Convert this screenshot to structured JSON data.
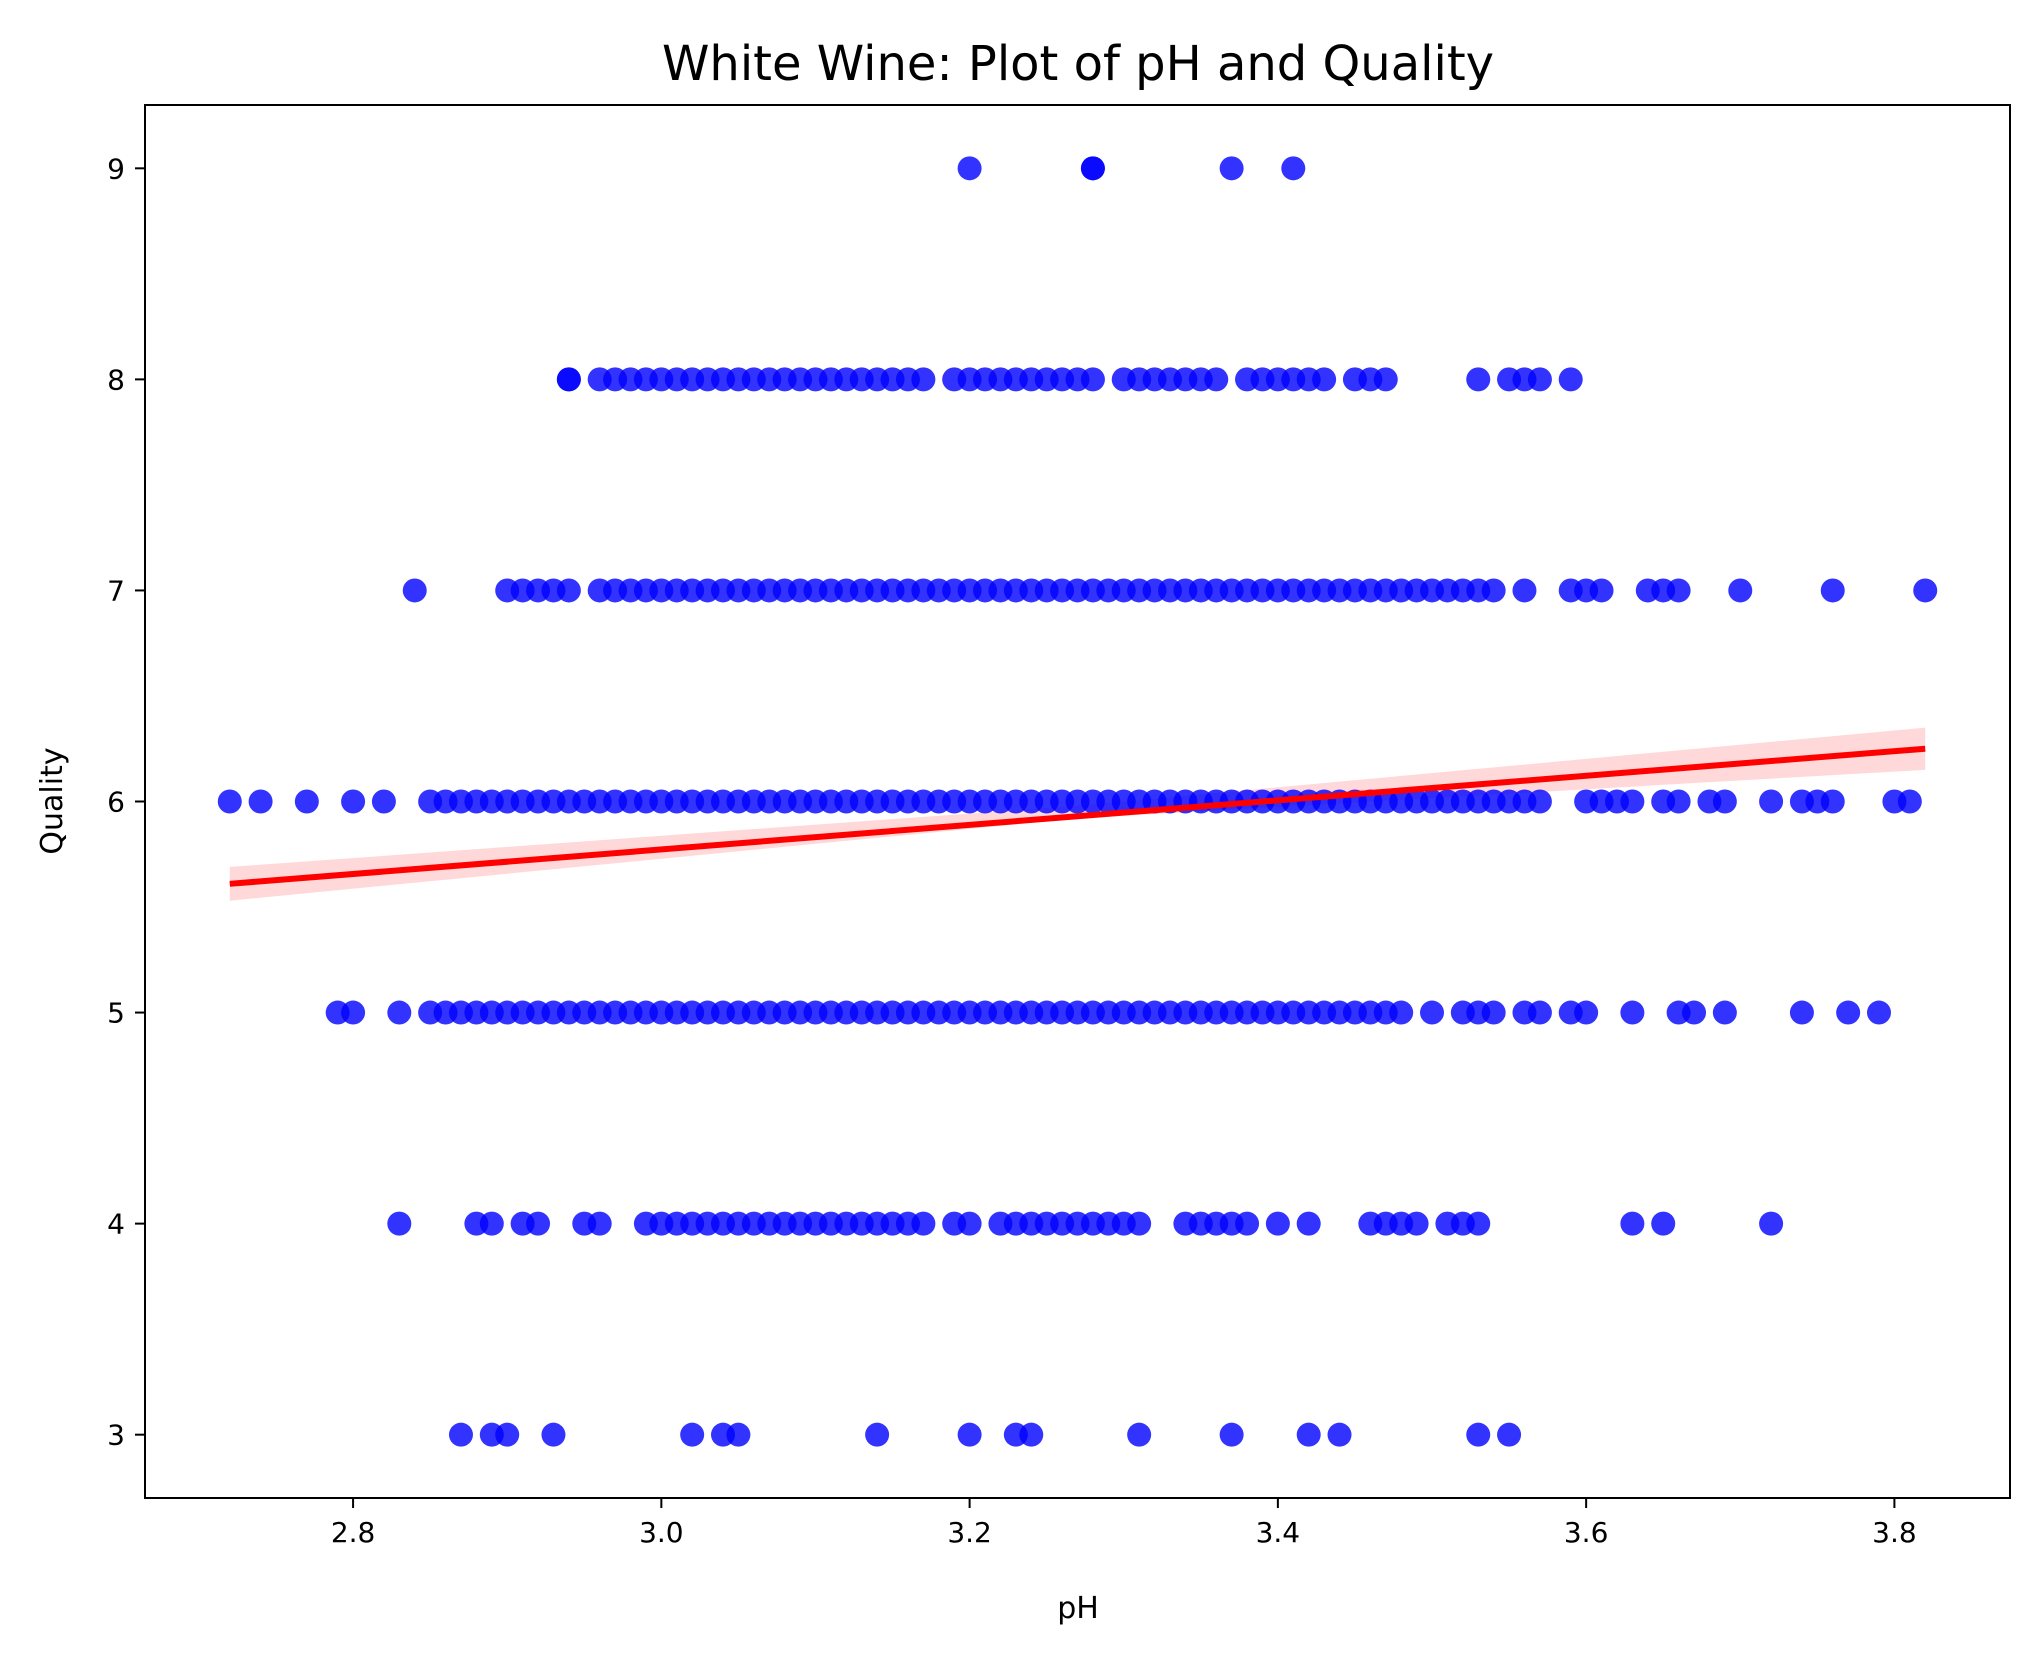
{
  "chart_data": {
    "type": "scatter",
    "title": "White Wine: Plot of pH and Quality",
    "xlabel": "pH",
    "ylabel": "Quality",
    "xlim": [
      2.665,
      3.875
    ],
    "ylim": [
      2.7,
      9.3
    ],
    "x_ticks": [
      2.8,
      3.0,
      3.2,
      3.4,
      3.6,
      3.8
    ],
    "x_tick_labels": [
      "2.8",
      "3.0",
      "3.2",
      "3.4",
      "3.6",
      "3.8"
    ],
    "y_ticks": [
      3,
      4,
      5,
      6,
      7,
      8,
      9
    ],
    "y_tick_labels": [
      "3",
      "4",
      "5",
      "6",
      "7",
      "8",
      "9"
    ],
    "grid": false,
    "legend": "none",
    "colors": {
      "points": "#0000ff",
      "regression": "#ff0000",
      "ci_band": "#ff0000"
    },
    "regression": {
      "x": [
        2.72,
        3.82
      ],
      "y": [
        5.61,
        6.25
      ]
    },
    "confidence_band": {
      "x": [
        2.72,
        3.27,
        3.82
      ],
      "lower": [
        5.53,
        5.92,
        6.15
      ],
      "upper": [
        5.69,
        5.98,
        6.35
      ]
    },
    "series": [
      {
        "y": 9,
        "x": [
          3.2,
          3.28,
          3.28,
          3.37,
          3.41
        ]
      },
      {
        "y": 8,
        "x": [
          2.94,
          2.94,
          2.96,
          2.97,
          2.98,
          2.99,
          3.0,
          3.01,
          3.02,
          3.03,
          3.04,
          3.05,
          3.06,
          3.07,
          3.08,
          3.09,
          3.1,
          3.11,
          3.12,
          3.13,
          3.14,
          3.15,
          3.16,
          3.17,
          3.19,
          3.2,
          3.21,
          3.22,
          3.23,
          3.24,
          3.25,
          3.26,
          3.27,
          3.28,
          3.3,
          3.31,
          3.32,
          3.33,
          3.34,
          3.35,
          3.36,
          3.38,
          3.39,
          3.4,
          3.41,
          3.42,
          3.43,
          3.45,
          3.46,
          3.47,
          3.53,
          3.55,
          3.56,
          3.57,
          3.59
        ]
      },
      {
        "y": 7,
        "x": [
          2.84,
          2.9,
          2.91,
          2.92,
          2.93,
          2.94,
          2.96,
          2.97,
          2.98,
          2.99,
          3.0,
          3.01,
          3.02,
          3.03,
          3.04,
          3.05,
          3.06,
          3.07,
          3.08,
          3.09,
          3.1,
          3.11,
          3.12,
          3.13,
          3.14,
          3.15,
          3.16,
          3.17,
          3.18,
          3.19,
          3.2,
          3.21,
          3.22,
          3.23,
          3.24,
          3.25,
          3.26,
          3.27,
          3.28,
          3.29,
          3.3,
          3.31,
          3.32,
          3.33,
          3.34,
          3.35,
          3.36,
          3.37,
          3.38,
          3.39,
          3.4,
          3.41,
          3.42,
          3.43,
          3.44,
          3.45,
          3.46,
          3.47,
          3.48,
          3.49,
          3.5,
          3.51,
          3.52,
          3.53,
          3.54,
          3.56,
          3.59,
          3.6,
          3.61,
          3.64,
          3.65,
          3.66,
          3.7,
          3.76,
          3.82
        ]
      },
      {
        "y": 6,
        "x": [
          2.72,
          2.74,
          2.77,
          2.8,
          2.82,
          2.85,
          2.86,
          2.87,
          2.88,
          2.89,
          2.9,
          2.91,
          2.92,
          2.93,
          2.94,
          2.95,
          2.96,
          2.97,
          2.98,
          2.99,
          3.0,
          3.01,
          3.02,
          3.03,
          3.04,
          3.05,
          3.06,
          3.07,
          3.08,
          3.09,
          3.1,
          3.11,
          3.12,
          3.13,
          3.14,
          3.15,
          3.16,
          3.17,
          3.18,
          3.19,
          3.2,
          3.21,
          3.22,
          3.23,
          3.24,
          3.25,
          3.26,
          3.27,
          3.28,
          3.29,
          3.3,
          3.31,
          3.32,
          3.33,
          3.34,
          3.35,
          3.36,
          3.37,
          3.38,
          3.39,
          3.4,
          3.41,
          3.42,
          3.43,
          3.44,
          3.45,
          3.46,
          3.47,
          3.48,
          3.49,
          3.5,
          3.51,
          3.52,
          3.53,
          3.54,
          3.55,
          3.56,
          3.57,
          3.6,
          3.61,
          3.62,
          3.63,
          3.65,
          3.66,
          3.68,
          3.69,
          3.72,
          3.74,
          3.75,
          3.76,
          3.8,
          3.81
        ]
      },
      {
        "y": 5,
        "x": [
          2.79,
          2.8,
          2.83,
          2.85,
          2.86,
          2.87,
          2.88,
          2.89,
          2.9,
          2.91,
          2.92,
          2.93,
          2.94,
          2.95,
          2.96,
          2.97,
          2.98,
          2.99,
          3.0,
          3.01,
          3.02,
          3.03,
          3.04,
          3.05,
          3.06,
          3.07,
          3.08,
          3.09,
          3.1,
          3.11,
          3.12,
          3.13,
          3.14,
          3.15,
          3.16,
          3.17,
          3.18,
          3.19,
          3.2,
          3.21,
          3.22,
          3.23,
          3.24,
          3.25,
          3.26,
          3.27,
          3.28,
          3.29,
          3.3,
          3.31,
          3.32,
          3.33,
          3.34,
          3.35,
          3.36,
          3.37,
          3.38,
          3.39,
          3.4,
          3.41,
          3.42,
          3.43,
          3.44,
          3.45,
          3.46,
          3.47,
          3.48,
          3.5,
          3.52,
          3.53,
          3.54,
          3.56,
          3.57,
          3.59,
          3.6,
          3.63,
          3.66,
          3.67,
          3.69,
          3.74,
          3.77,
          3.79
        ]
      },
      {
        "y": 4,
        "x": [
          2.83,
          2.88,
          2.89,
          2.91,
          2.92,
          2.95,
          2.96,
          2.99,
          3.0,
          3.01,
          3.02,
          3.03,
          3.04,
          3.05,
          3.06,
          3.07,
          3.08,
          3.09,
          3.1,
          3.11,
          3.12,
          3.13,
          3.14,
          3.15,
          3.16,
          3.17,
          3.19,
          3.2,
          3.22,
          3.23,
          3.24,
          3.25,
          3.26,
          3.27,
          3.28,
          3.29,
          3.3,
          3.31,
          3.34,
          3.35,
          3.36,
          3.37,
          3.38,
          3.4,
          3.42,
          3.46,
          3.47,
          3.48,
          3.49,
          3.51,
          3.52,
          3.53,
          3.63,
          3.65,
          3.72
        ]
      },
      {
        "y": 3,
        "x": [
          2.87,
          2.89,
          2.9,
          2.93,
          3.02,
          3.04,
          3.05,
          3.14,
          3.2,
          3.23,
          3.24,
          3.31,
          3.37,
          3.42,
          3.44,
          3.53,
          3.55
        ]
      }
    ]
  }
}
